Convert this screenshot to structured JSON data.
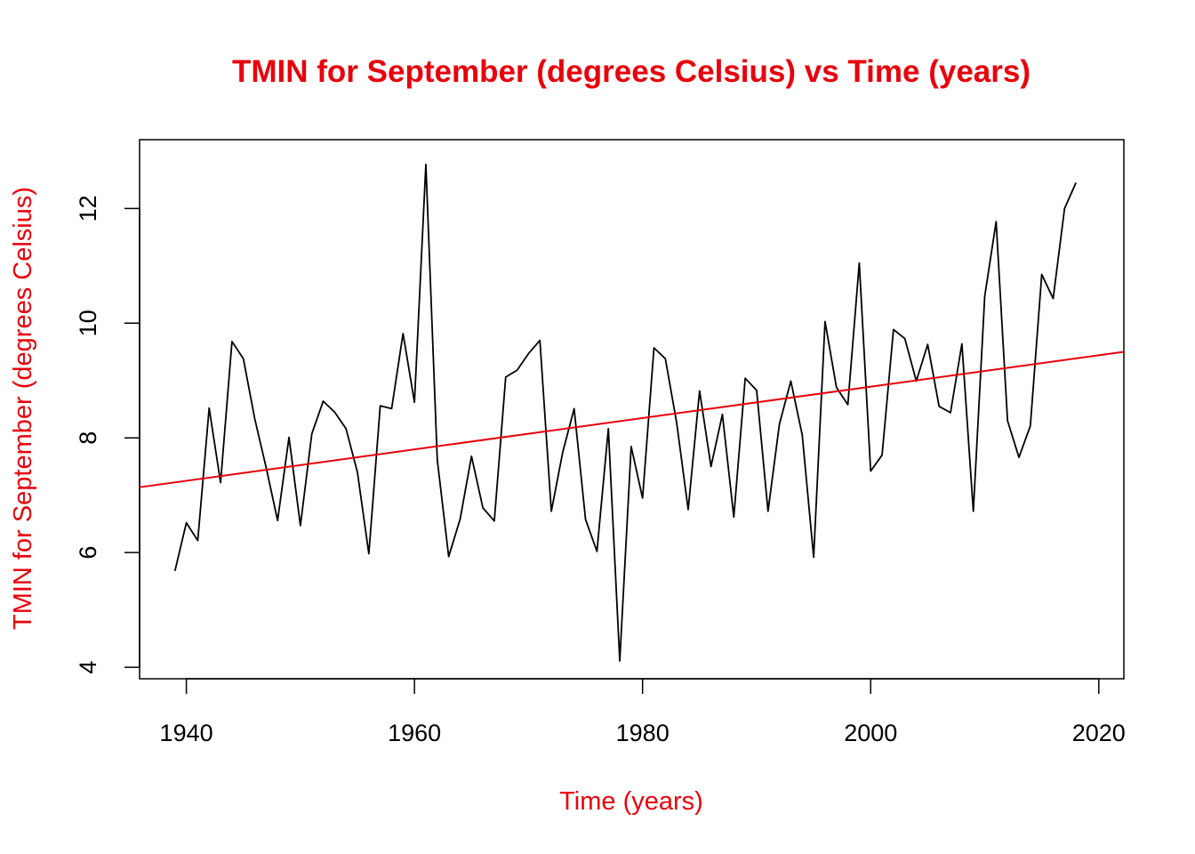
{
  "chart_data": {
    "type": "line",
    "title": "TMIN for September (degrees Celsius) vs Time (years)",
    "xlabel": "Time (years)",
    "ylabel": "TMIN for September (degrees Celsius)",
    "xlim": [
      1935.9,
      2022.2
    ],
    "ylim": [
      3.8,
      13.2
    ],
    "x_ticks": [
      1940,
      1960,
      1980,
      2000,
      2020
    ],
    "y_ticks": [
      4,
      6,
      8,
      10,
      12
    ],
    "grid": false,
    "legend": "none",
    "colors": {
      "data_line": "#000000",
      "trend_line": "#e8000b",
      "text_accent": "#e8000b"
    },
    "series": [
      {
        "x": [
          1939,
          1940,
          1941,
          1942,
          1943,
          1944,
          1945,
          1946,
          1947,
          1948,
          1949,
          1950,
          1951,
          1952,
          1953,
          1954,
          1955,
          1956,
          1957,
          1958,
          1959,
          1960,
          1961,
          1962,
          1963,
          1964,
          1965,
          1966,
          1967,
          1968,
          1969,
          1970,
          1971,
          1972,
          1973,
          1974,
          1975,
          1976,
          1977,
          1978,
          1979,
          1980,
          1981,
          1982,
          1983,
          1984,
          1985,
          1986,
          1987,
          1988,
          1989,
          1990,
          1991,
          1992,
          1993,
          1994,
          1995,
          1996,
          1997,
          1998,
          1999,
          2000,
          2001,
          2002,
          2003,
          2004,
          2005,
          2006,
          2007,
          2008,
          2009,
          2010,
          2011,
          2012,
          2013,
          2014,
          2015,
          2016,
          2017,
          2018
        ],
        "values": [
          5.68,
          6.52,
          6.21,
          8.52,
          7.22,
          9.68,
          9.38,
          8.33,
          7.48,
          6.56,
          8.01,
          6.47,
          8.07,
          8.64,
          8.45,
          8.16,
          7.4,
          5.98,
          8.56,
          8.51,
          9.82,
          8.62,
          12.77,
          7.62,
          5.93,
          6.58,
          7.68,
          6.78,
          6.55,
          9.06,
          9.18,
          9.47,
          9.7,
          6.72,
          7.75,
          8.51,
          6.58,
          6.02,
          8.16,
          4.11,
          7.85,
          6.95,
          9.57,
          9.38,
          8.25,
          6.75,
          8.82,
          7.5,
          8.41,
          6.62,
          9.04,
          8.83,
          6.72,
          8.24,
          8.99,
          8.05,
          5.92,
          10.03,
          8.88,
          8.58,
          11.05,
          7.42,
          7.7,
          9.89,
          9.73,
          8.99,
          9.63,
          8.55,
          8.44,
          9.64,
          6.72,
          10.47,
          11.77,
          8.3,
          7.66,
          8.21,
          10.85,
          10.43,
          12.0,
          12.45
        ]
      },
      {
        "x": [
          1935.9,
          2022.2
        ],
        "values": [
          7.14,
          9.5
        ]
      }
    ]
  }
}
